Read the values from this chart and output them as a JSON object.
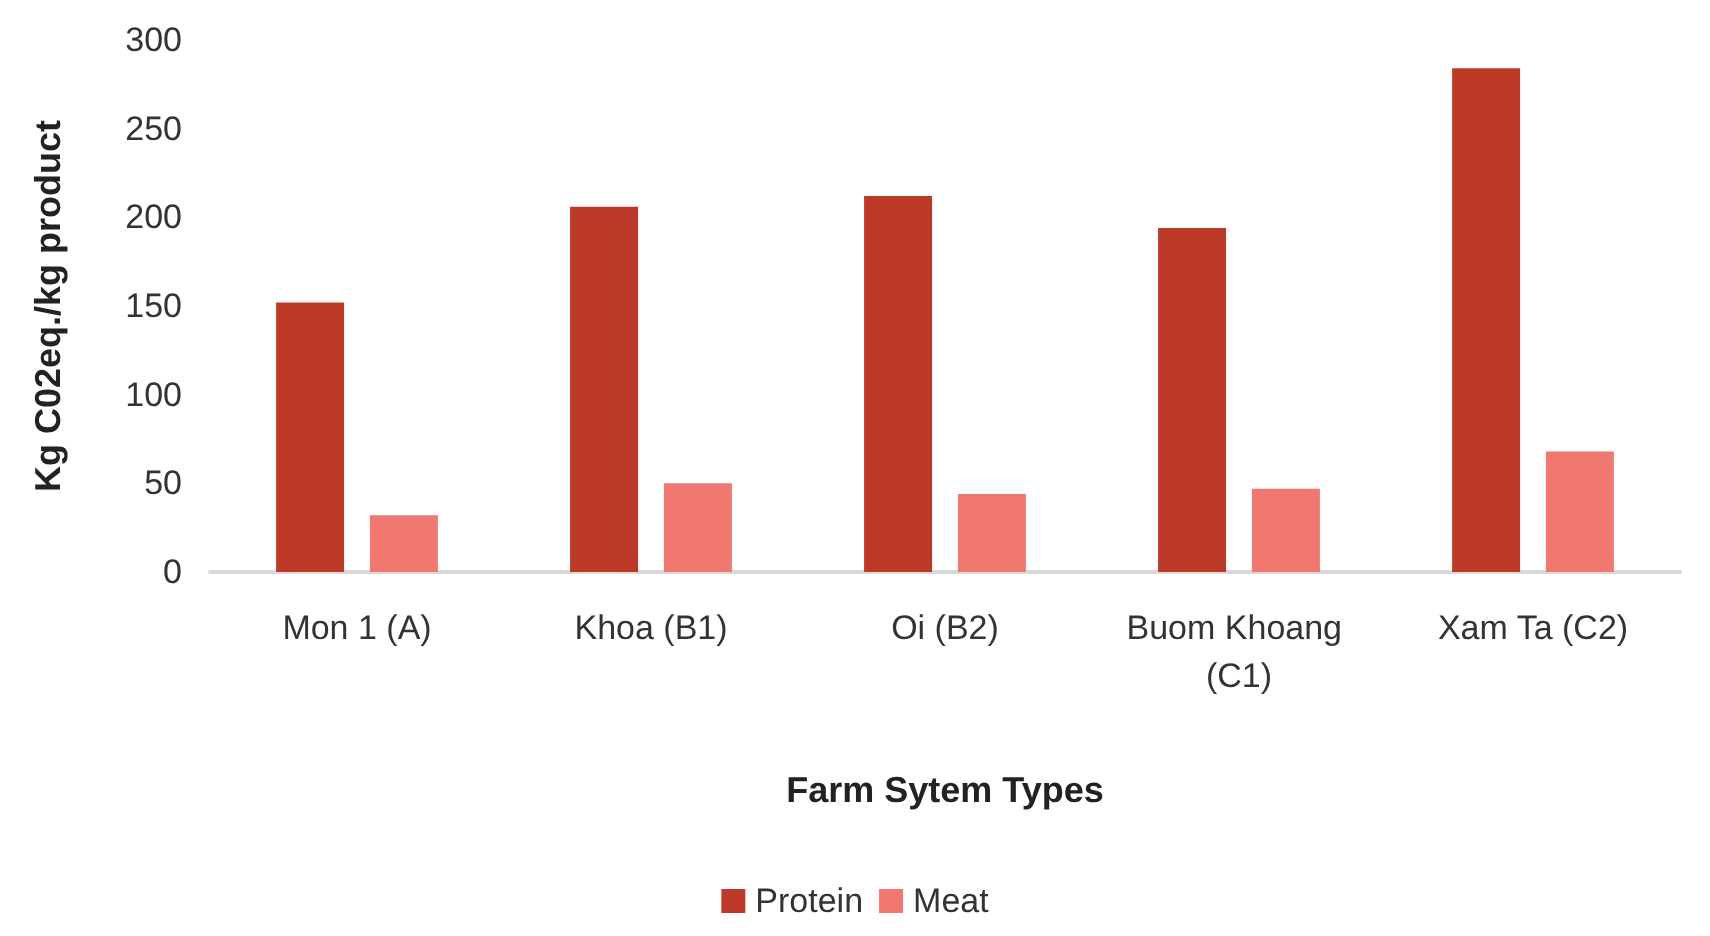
{
  "chart_data": {
    "type": "bar",
    "xlabel": "Farm Sytem Types",
    "ylabel": "Kg C02eq./kg product",
    "categories": [
      "Mon 1 (A)",
      "Khoa (B1)",
      "Oi (B2)",
      "Buom Khoang (C1)",
      "Xam Ta (C2)"
    ],
    "series": [
      {
        "name": "Protein",
        "color": "#be3a28",
        "values": [
          152,
          206,
          212,
          194,
          284
        ]
      },
      {
        "name": "Meat",
        "color": "#f07870",
        "values": [
          32,
          50,
          44,
          47,
          68
        ]
      }
    ],
    "ylim": [
      0,
      300
    ],
    "yticks": [
      0,
      50,
      100,
      150,
      200,
      250,
      300
    ],
    "grid": false,
    "legend": "bottom"
  }
}
